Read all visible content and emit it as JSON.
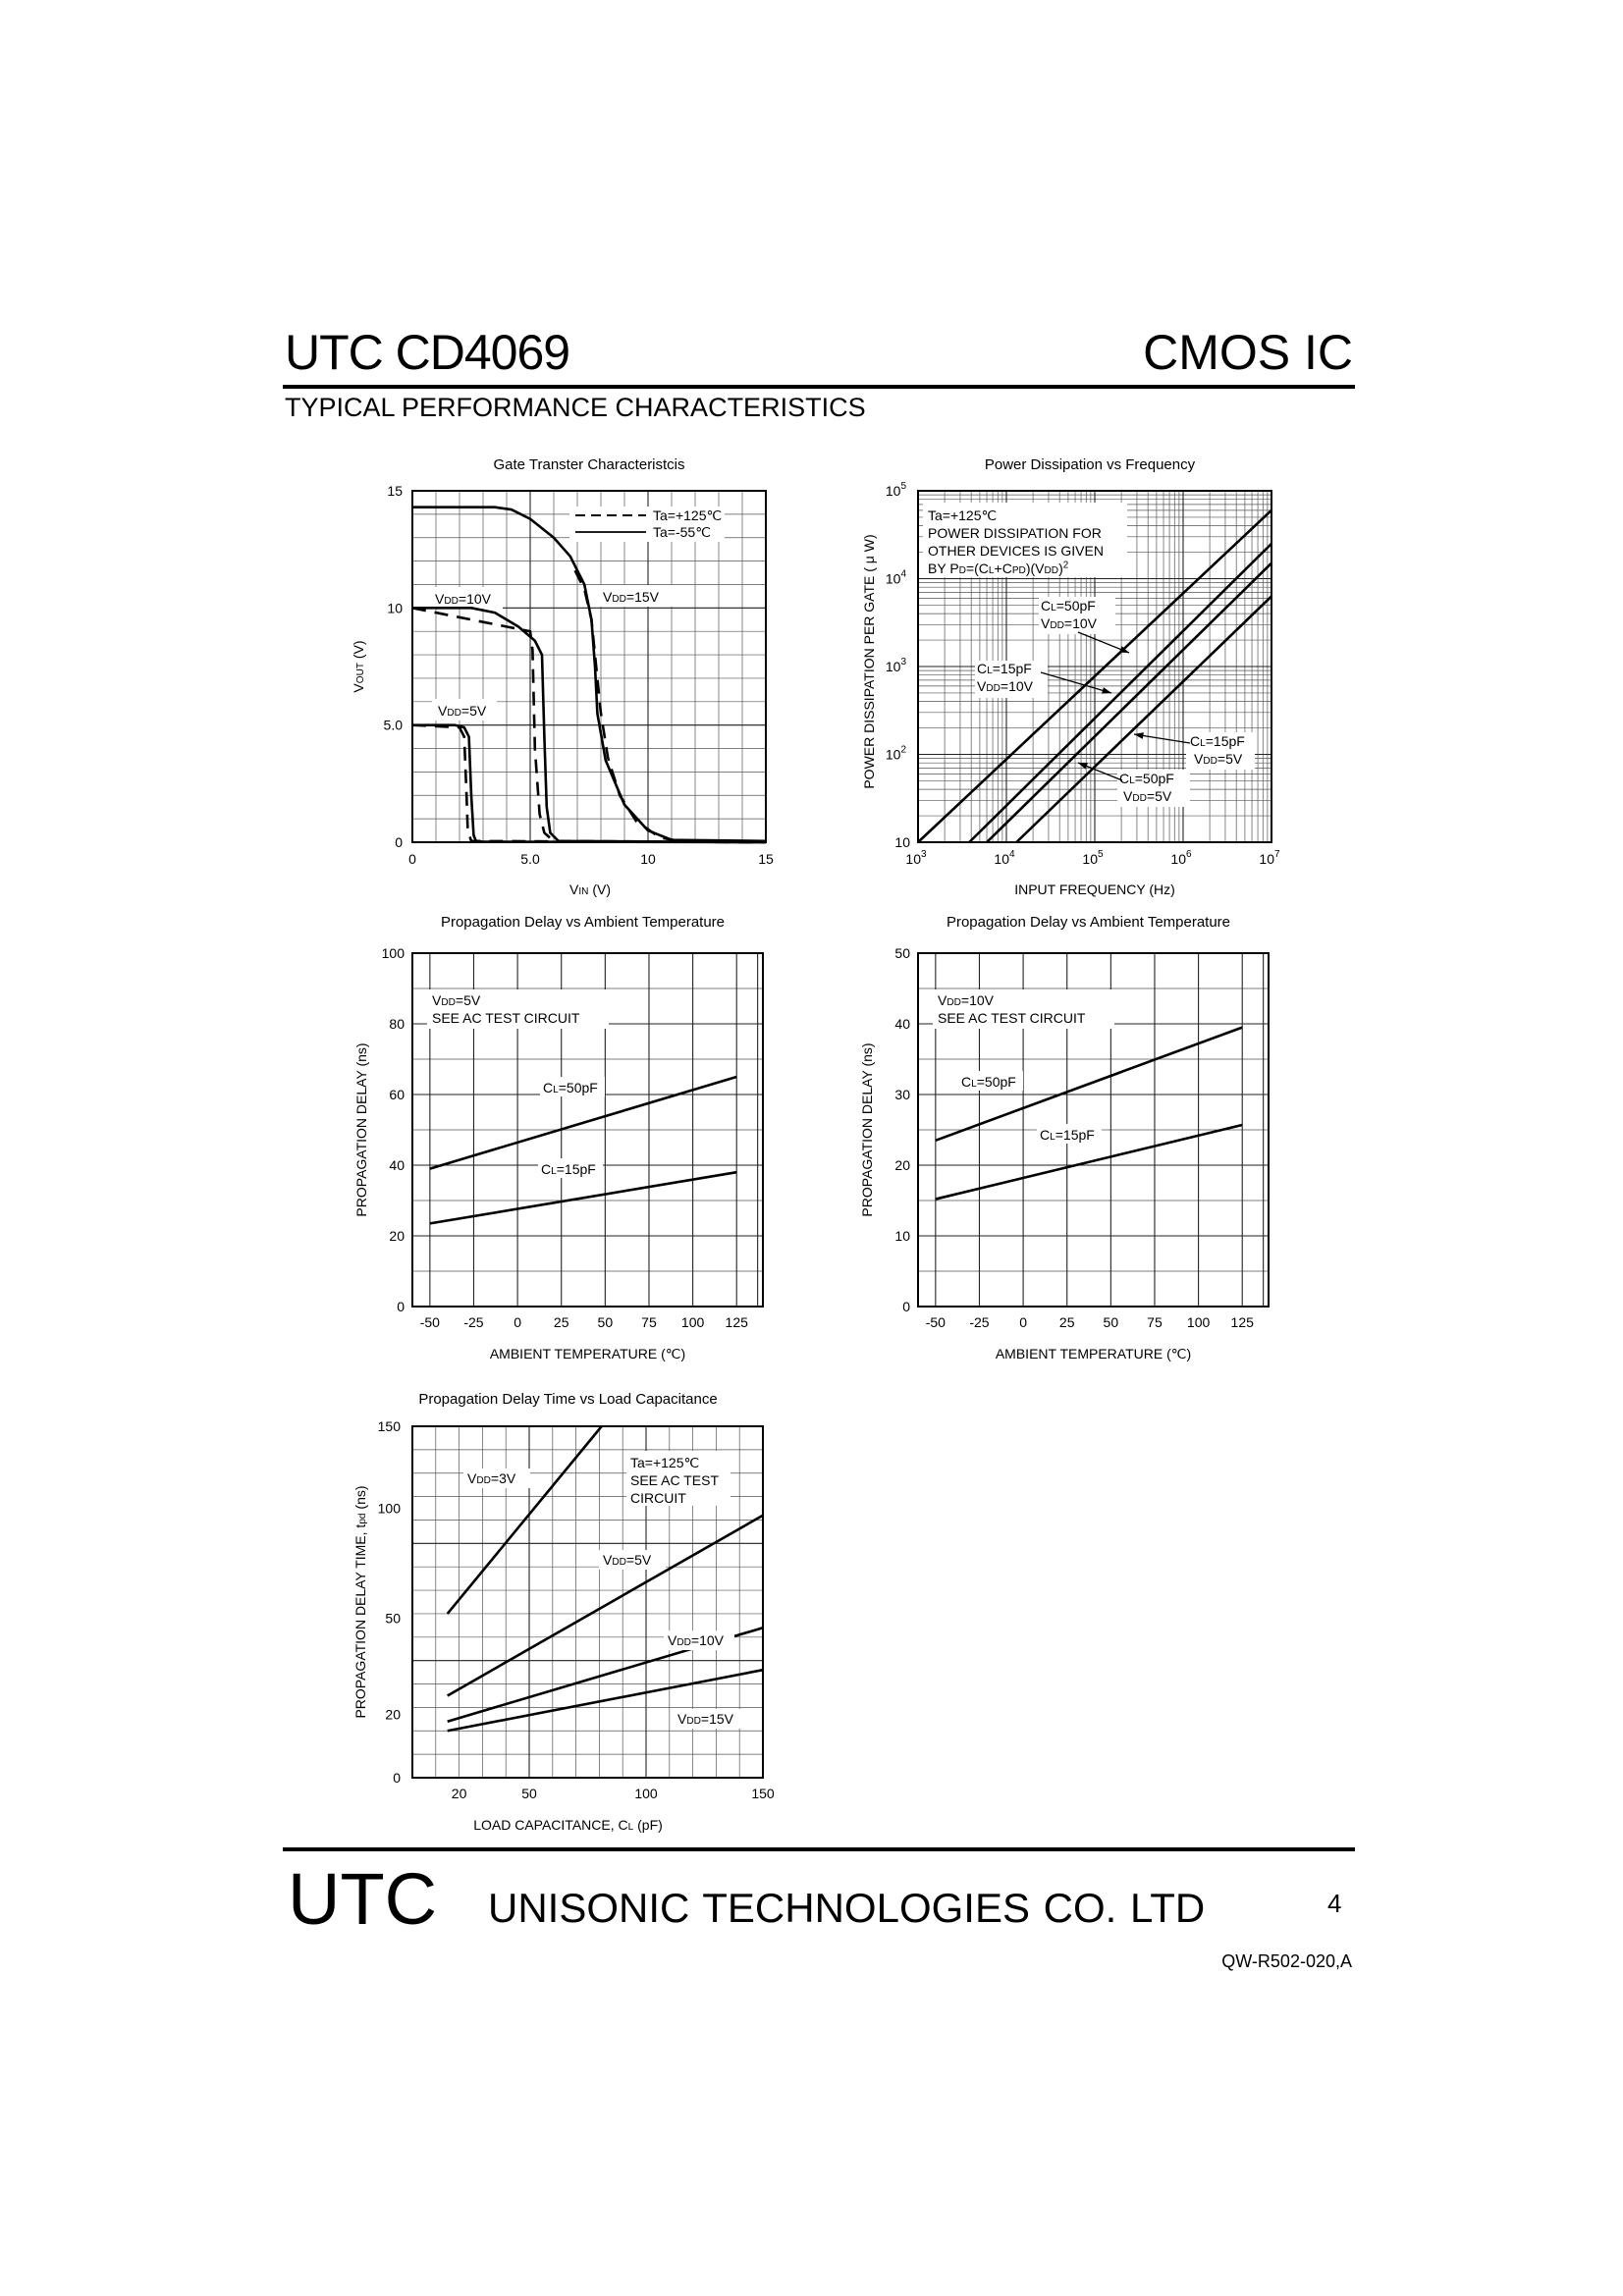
{
  "header": {
    "left": "UTC CD4069",
    "right": "CMOS IC",
    "subtitle": "TYPICAL PERFORMANCE CHARACTERISTICS"
  },
  "footer": {
    "brand": "UTC",
    "company": "UNISONIC TECHNOLOGIES    CO. LTD",
    "page": "4",
    "doc_no": "QW-R502-020,A"
  },
  "chart_data": [
    {
      "id": "gate",
      "type": "line",
      "title": "Gate Transter Characteristcis",
      "xlabel": "VIN (V)",
      "ylabel": "VOUT (V)",
      "xlim": [
        0,
        15
      ],
      "ylim": [
        0,
        15
      ],
      "xticks": [
        "0",
        "5.0",
        "10",
        "15"
      ],
      "yticks": [
        "0",
        "5.0",
        "10",
        "15"
      ],
      "legend": [
        {
          "label": "Ta=+125℃",
          "style": "dashed"
        },
        {
          "label": "Ta=-55℃",
          "style": "solid"
        }
      ],
      "annotations": [
        "VDD=10V",
        "VDD=15V",
        "VDD=5V"
      ],
      "series": [
        {
          "name": "Ta=-55℃",
          "style": "solid",
          "x": [
            0,
            1.8,
            2.2,
            2.4,
            2.5,
            2.6,
            2.7,
            3.0,
            15
          ],
          "y": [
            5,
            5,
            4.9,
            4.5,
            2,
            0.3,
            0.05,
            0.02,
            0
          ]
        },
        {
          "name": "Ta=+125℃",
          "style": "dashed",
          "x": [
            0,
            2.0,
            2.2,
            2.3,
            2.35,
            2.5,
            15
          ],
          "y": [
            5,
            4.9,
            4.5,
            2,
            0.5,
            0.05,
            0
          ]
        },
        {
          "name": "Ta=-55℃",
          "style": "solid",
          "x": [
            0,
            2.5,
            3.5,
            4.5,
            5.2,
            5.5,
            5.6,
            5.7,
            5.85,
            6.2,
            15
          ],
          "y": [
            10,
            10,
            9.8,
            9.2,
            8.6,
            8.0,
            4.5,
            1.5,
            0.4,
            0.05,
            0
          ]
        },
        {
          "name": "Ta=+125℃",
          "style": "dashed",
          "x": [
            0,
            5.0,
            5.1,
            5.2,
            5.4,
            5.6,
            6.0,
            15
          ],
          "y": [
            10,
            9.0,
            8.2,
            4,
            1.2,
            0.4,
            0.05,
            0
          ]
        },
        {
          "name": "Ta=-55℃",
          "style": "solid",
          "x": [
            0,
            3.5,
            4.2,
            5,
            6,
            6.7,
            7.3,
            7.6,
            7.75,
            7.85,
            8.2,
            9,
            10,
            11,
            15
          ],
          "y": [
            14.3,
            14.3,
            14.2,
            13.8,
            13,
            12.2,
            11.0,
            9.5,
            7.5,
            5.5,
            3.5,
            1.6,
            0.5,
            0.1,
            0.05
          ]
        },
        {
          "name": "Ta=+125℃",
          "style": "dashed",
          "x": [
            6.9,
            7.3,
            7.6,
            7.8,
            8.0,
            8.3,
            8.8,
            9.5,
            10.5,
            11.5
          ],
          "y": [
            11.6,
            10.8,
            9.5,
            7.5,
            5.5,
            3.6,
            2.0,
            0.9,
            0.2,
            0.02
          ]
        },
        {
          "name": "Ta=-55℃",
          "style": "solid",
          "x": [
            11,
            12,
            15
          ],
          "y": [
            0.1,
            0.05,
            0.05
          ]
        }
      ]
    },
    {
      "id": "power",
      "type": "line",
      "title": "Power Dissipation vs Frequency",
      "xlabel": "INPUT FREQUENCY (Hz)",
      "ylabel": "POWER DISSIPATION PER GATE ( μ W)",
      "scale": "log-log",
      "xlim": [
        1000,
        10000000
      ],
      "ylim": [
        10,
        100000
      ],
      "xticks": [
        {
          "base": "10",
          "exp": "3"
        },
        {
          "base": "10",
          "exp": "4"
        },
        {
          "base": "10",
          "exp": "5"
        },
        {
          "base": "10",
          "exp": "6"
        },
        {
          "base": "10",
          "exp": "7"
        }
      ],
      "yticks": [
        "10",
        {
          "base": "10",
          "exp": "2"
        },
        {
          "base": "10",
          "exp": "3"
        },
        {
          "base": "10",
          "exp": "4"
        },
        {
          "base": "10",
          "exp": "5"
        }
      ],
      "note": [
        "Ta=+125℃",
        "POWER DISSIPATION FOR",
        "OTHER DEVICES IS GIVEN",
        "BY PD=(CL+CPD)(VDD)2"
      ],
      "series": [
        {
          "name": "CL=50pF VDD=10V",
          "x": [
            1000,
            10000000
          ],
          "y": [
            10,
            60000
          ]
        },
        {
          "name": "CL=15pF VDD=10V",
          "x": [
            3800,
            10000000
          ],
          "y": [
            10,
            25000
          ]
        },
        {
          "name": "CL=50pF VDD=5V",
          "x": [
            6000,
            10000000
          ],
          "y": [
            10,
            15000
          ]
        },
        {
          "name": "CL=15pF VDD=5V",
          "x": [
            13000,
            10000000
          ],
          "y": [
            10,
            6300
          ]
        }
      ],
      "labels": [
        "CL=50pF",
        "VDD=10V",
        "CL=15pF",
        "VDD=10V",
        "CL=15pF",
        "VDD=5V",
        "CL=50pF",
        "VDD=5V"
      ]
    },
    {
      "id": "pd5",
      "type": "line",
      "title": "Propagation Delay vs Ambient Temperature",
      "xlabel": "AMBIENT TEMPERATURE (℃)",
      "ylabel": "PROPAGATION DELAY (ns)",
      "xlim": [
        -60,
        140
      ],
      "ylim": [
        0,
        100
      ],
      "xticks": [
        "-50",
        "-25",
        "0",
        "25",
        "50",
        "75",
        "100",
        "125"
      ],
      "yticks": [
        "0",
        "20",
        "40",
        "60",
        "80",
        "100"
      ],
      "note": [
        "VDD=5V",
        "SEE AC TEST CIRCUIT"
      ],
      "series": [
        {
          "name": "CL=50pF",
          "x": [
            -50,
            125
          ],
          "y": [
            39,
            65
          ]
        },
        {
          "name": "CL=15pF",
          "x": [
            -50,
            125
          ],
          "y": [
            23.5,
            38
          ]
        }
      ]
    },
    {
      "id": "pd10",
      "type": "line",
      "title": "Propagation Delay vs Ambient Temperature",
      "xlabel": "AMBIENT TEMPERATURE (℃)",
      "ylabel": "PROPAGATION DELAY (ns)",
      "xlim": [
        -60,
        140
      ],
      "ylim": [
        0,
        50
      ],
      "xticks": [
        "-50",
        "-25",
        "0",
        "25",
        "50",
        "75",
        "100",
        "125"
      ],
      "yticks": [
        "0",
        "10",
        "20",
        "30",
        "40",
        "50"
      ],
      "note": [
        "VDD=10V",
        "SEE AC TEST CIRCUIT"
      ],
      "series": [
        {
          "name": "CL=50pF",
          "x": [
            -50,
            125
          ],
          "y": [
            23.5,
            39.5
          ]
        },
        {
          "name": "CL=15pF",
          "x": [
            -50,
            125
          ],
          "y": [
            15.2,
            25.7
          ]
        }
      ]
    },
    {
      "id": "load",
      "type": "line",
      "title": "Propagation Delay Time vs Load Capacitance",
      "xlabel": "LOAD CAPACITANCE, CL (pF)",
      "ylabel": "PROPAGATION DELAY TIME, tpd (ns)",
      "xlim": [
        0,
        150
      ],
      "ylim": [
        0,
        150
      ],
      "xticks": [
        "20",
        "50",
        "100",
        "150"
      ],
      "yticks": [
        "0",
        "20",
        "50",
        "100",
        "150"
      ],
      "note": [
        "Ta=+125℃",
        "SEE AC TEST",
        "CIRCUIT"
      ],
      "series": [
        {
          "name": "VDD=3V",
          "x": [
            15,
            81
          ],
          "y": [
            70,
            150
          ]
        },
        {
          "name": "VDD=5V",
          "x": [
            15,
            150
          ],
          "y": [
            35,
            112
          ]
        },
        {
          "name": "VDD=10V",
          "x": [
            15,
            150
          ],
          "y": [
            24,
            64
          ]
        },
        {
          "name": "VDD=15V",
          "x": [
            15,
            150
          ],
          "y": [
            20,
            46
          ]
        }
      ]
    }
  ]
}
